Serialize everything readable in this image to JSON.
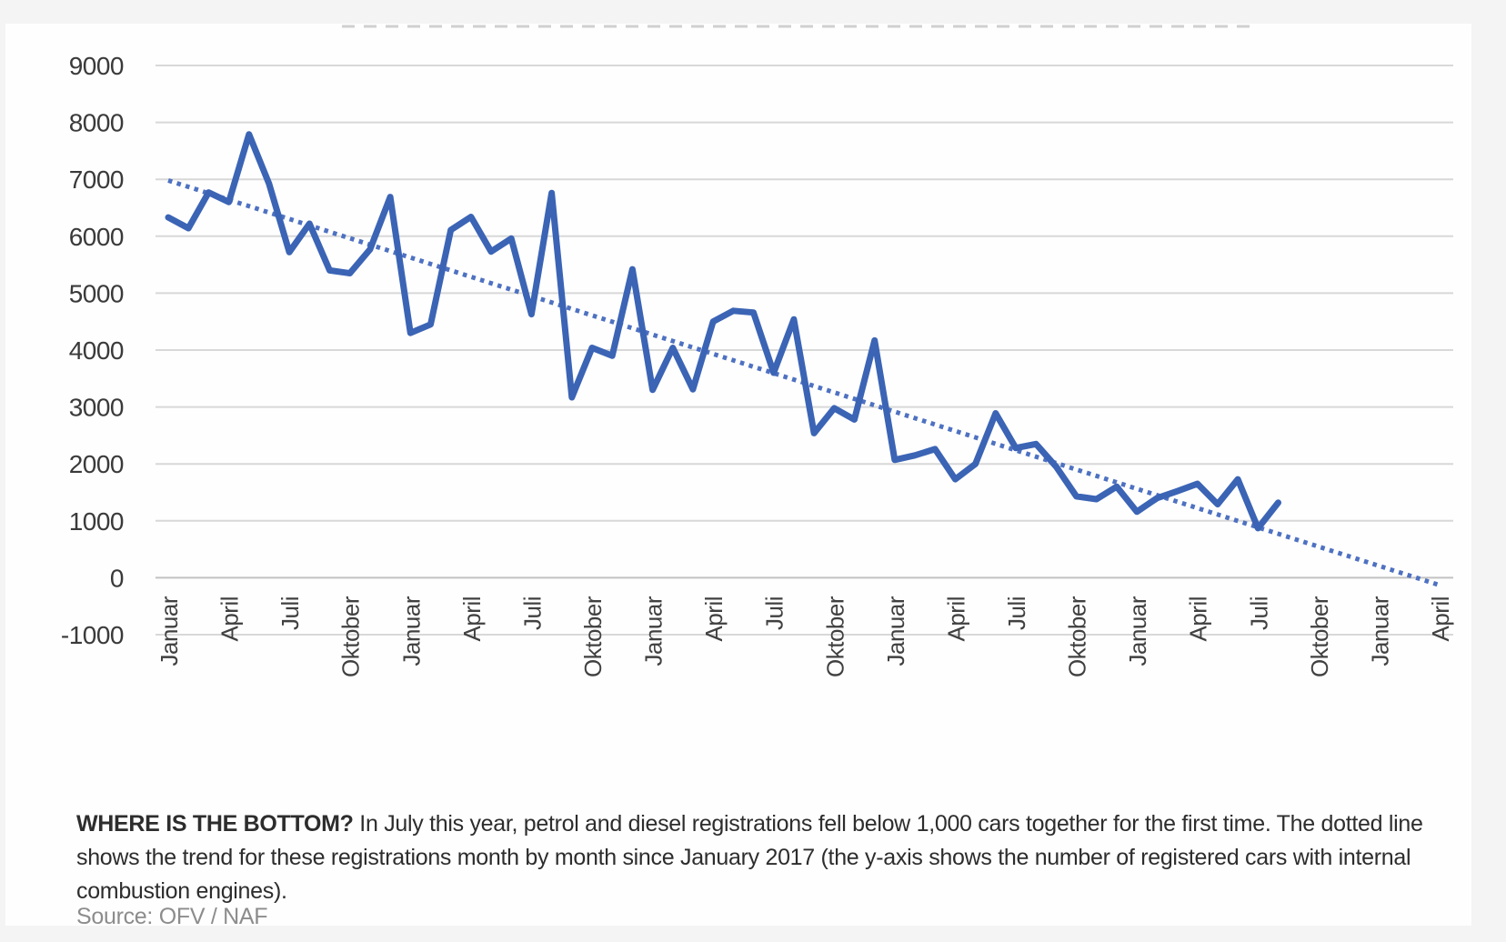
{
  "page": {
    "background": "#f4f4f5",
    "card_background": "#fefefe"
  },
  "chart_data": {
    "type": "line",
    "title": "",
    "xlabel": "",
    "ylabel": "",
    "grid": true,
    "legend": false,
    "y_axis": {
      "min": -1000,
      "max": 9000,
      "tick_step": 1000,
      "ticks": [
        9000,
        8000,
        7000,
        6000,
        5000,
        4000,
        3000,
        2000,
        1000,
        0,
        -1000
      ]
    },
    "x_axis": {
      "tick_interval_months": 3,
      "total_months": 64,
      "tick_labels": [
        "Januar",
        "April",
        "Juli",
        "Oktober",
        "Januar",
        "April",
        "Juli",
        "Oktober",
        "Januar",
        "April",
        "Juli",
        "Oktober",
        "Januar",
        "April",
        "Juli",
        "Oktober",
        "Januar",
        "April",
        "Juli",
        "Oktober",
        "Januar",
        "April"
      ]
    },
    "series": [
      {
        "name": "petrol-diesel-registrations",
        "style": "solid",
        "color": "#3b64b5",
        "values": [
          6330,
          6140,
          6770,
          6600,
          7790,
          6920,
          5720,
          6220,
          5400,
          5350,
          5770,
          6690,
          4300,
          4450,
          6110,
          6340,
          5730,
          5960,
          4630,
          6760,
          3170,
          4040,
          3900,
          5420,
          3300,
          4040,
          3310,
          4500,
          4690,
          4660,
          3600,
          4540,
          2540,
          2980,
          2780,
          4170,
          2070,
          2150,
          2260,
          1730,
          2000,
          2890,
          2280,
          2350,
          1950,
          1430,
          1380,
          1600,
          1160,
          1400,
          1520,
          1650,
          1290,
          1730,
          870,
          1320
        ]
      },
      {
        "name": "trend",
        "style": "dotted",
        "color": "#4e71c1",
        "start_month_index": 0,
        "start_value": 6980,
        "end_month_index": 63,
        "end_value": -130
      }
    ],
    "colors": {
      "gridline": "#d8d8d8",
      "zero_line": "#c2c2c2",
      "axis_text": "#3a3a3a"
    }
  },
  "caption": {
    "lead": "WHERE IS THE BOTTOM?",
    "text": " In July this year, petrol and diesel registrations fell below 1,000 cars together for the first time. The dotted line shows the trend for these registrations month by month since January 2017 (the y-axis shows the number of registered cars with internal combustion engines).",
    "source": "Source: OFV / NAF"
  }
}
